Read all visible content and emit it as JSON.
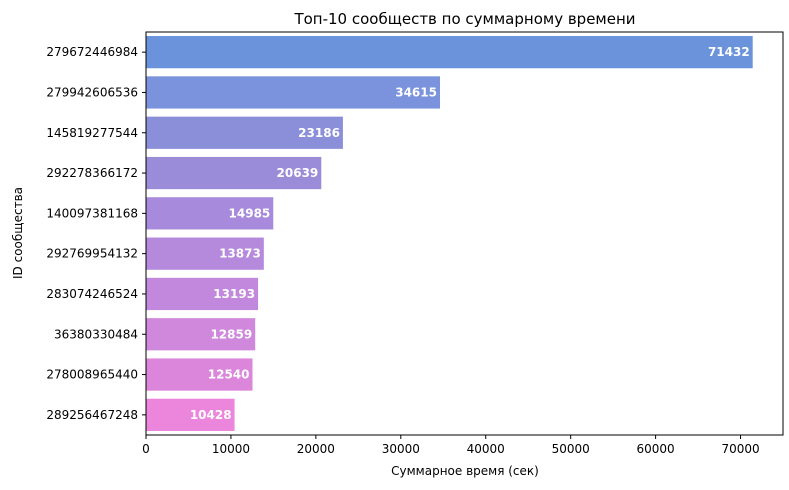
{
  "chart_data": {
    "type": "bar",
    "orientation": "horizontal",
    "title": "Топ-10 сообществ по суммарному времени",
    "xlabel": "Суммарное время (сек)",
    "ylabel": "ID сообщества",
    "categories": [
      "279672446984",
      "279942606536",
      "145819277544",
      "292278366172",
      "140097381168",
      "292769954132",
      "283074246524",
      "36380330484",
      "278008965440",
      "289256467248"
    ],
    "values": [
      71432,
      34615,
      23186,
      20639,
      14985,
      13873,
      13193,
      12859,
      12540,
      10428
    ],
    "data_labels": [
      "71432",
      "34615",
      "23186",
      "20639",
      "14985",
      "13873",
      "13193",
      "12859",
      "12540",
      "10428"
    ],
    "xlim": [
      0,
      75000
    ],
    "xticks": [
      0,
      10000,
      20000,
      30000,
      40000,
      50000,
      60000,
      70000
    ],
    "xtick_labels": [
      "0",
      "10000",
      "20000",
      "30000",
      "40000",
      "50000",
      "60000",
      "70000"
    ],
    "bar_colors": [
      "#6a93dc",
      "#7a93dc",
      "#8b8fda",
      "#9b8cd9",
      "#a78adb",
      "#b589dc",
      "#c288dd",
      "#d088dc",
      "#dc86db",
      "#ec86dc"
    ],
    "grid": false,
    "legend": "none"
  }
}
